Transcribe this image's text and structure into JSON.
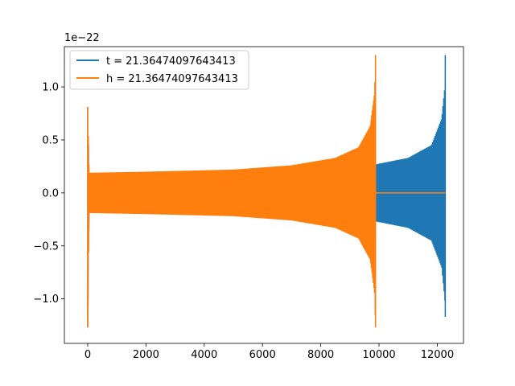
{
  "chart_data": {
    "type": "line",
    "offset_label": "1e−22",
    "xlim": [
      -800,
      12900
    ],
    "ylim": [
      -1.42,
      1.38
    ],
    "x_ticks": [
      0,
      2000,
      4000,
      6000,
      8000,
      10000,
      12000
    ],
    "x_tick_labels": [
      "0",
      "2000",
      "4000",
      "6000",
      "8000",
      "10000",
      "12000"
    ],
    "y_ticks": [
      -1.0,
      -0.5,
      0.0,
      0.5,
      1.0
    ],
    "y_tick_labels": [
      "−1.0",
      "−0.5",
      "0.0",
      "0.5",
      "1.0"
    ],
    "grid": false,
    "legend_placement": "top-left",
    "series": [
      {
        "name": "t = 21.36474097643413",
        "color": "#1f77b4",
        "x_extent": [
          0,
          12280
        ],
        "envelope_upper": [
          [
            0,
            0.81
          ],
          [
            50,
            0.15
          ],
          [
            3000,
            0.19
          ],
          [
            9900,
            0.27
          ],
          [
            11000,
            0.33
          ],
          [
            11800,
            0.45
          ],
          [
            12150,
            0.7
          ],
          [
            12260,
            1.0
          ],
          [
            12275,
            1.3
          ]
        ],
        "envelope_lower": [
          [
            0,
            -1.27
          ],
          [
            50,
            -0.15
          ],
          [
            3000,
            -0.19
          ],
          [
            9900,
            -0.27
          ],
          [
            11000,
            -0.33
          ],
          [
            11800,
            -0.45
          ],
          [
            12150,
            -0.7
          ],
          [
            12260,
            -1.0
          ],
          [
            12275,
            -1.17
          ]
        ],
        "after_merger_value": 0.0
      },
      {
        "name": "h = 21.36474097643413",
        "color": "#ff7f0e",
        "x_extent": [
          0,
          12280
        ],
        "envelope_upper": [
          [
            0,
            0.81
          ],
          [
            50,
            0.19
          ],
          [
            2000,
            0.2
          ],
          [
            5000,
            0.22
          ],
          [
            7000,
            0.26
          ],
          [
            8500,
            0.33
          ],
          [
            9300,
            0.43
          ],
          [
            9700,
            0.63
          ],
          [
            9850,
            0.95
          ],
          [
            9880,
            1.3
          ]
        ],
        "envelope_lower": [
          [
            0,
            -1.27
          ],
          [
            50,
            -0.19
          ],
          [
            2000,
            -0.2
          ],
          [
            5000,
            -0.22
          ],
          [
            7000,
            -0.26
          ],
          [
            8500,
            -0.33
          ],
          [
            9300,
            -0.43
          ],
          [
            9700,
            -0.63
          ],
          [
            9850,
            -0.95
          ],
          [
            9880,
            -1.27
          ]
        ],
        "after_merger_value": 0.0
      }
    ]
  }
}
